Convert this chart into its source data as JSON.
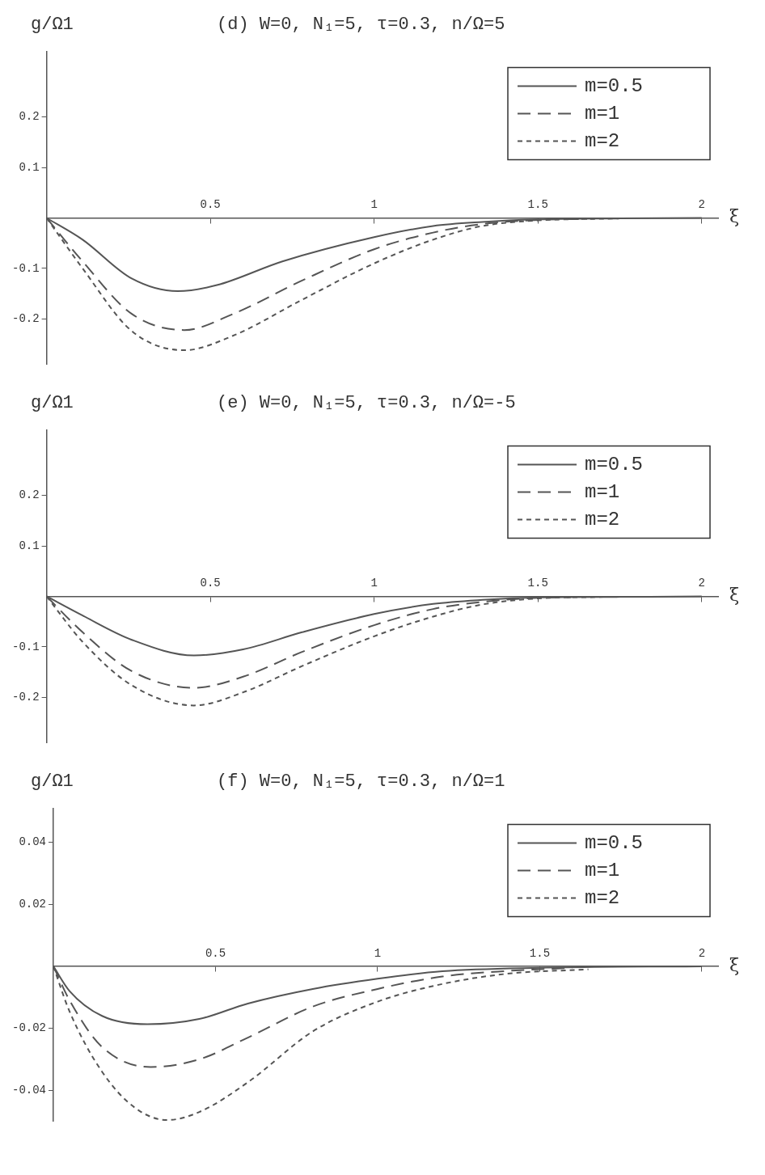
{
  "chart_data": [
    {
      "type": "line",
      "title": "(d) W=0,  N₁=5, τ=0.3,  n/Ω=5",
      "ylabel": "g/Ω1",
      "xlabel": "ξ",
      "xlim": [
        0,
        2.05
      ],
      "ylim": [
        -0.29,
        0.33
      ],
      "xticks": [
        0.5,
        1,
        1.5,
        2
      ],
      "yticks": [
        -0.2,
        -0.1,
        0.1,
        0.2
      ],
      "legend": "top right",
      "grid": false,
      "series": [
        {
          "name": "m=0.5",
          "color": "#555555",
          "line_style": "solid",
          "x": [
            0,
            0.11,
            0.26,
            0.4,
            0.52,
            0.72,
            1,
            1.18,
            1.33,
            1.5,
            1.75,
            2
          ],
          "values": [
            0,
            -0.043,
            -0.12,
            -0.145,
            -0.133,
            -0.086,
            -0.038,
            -0.016,
            -0.008,
            -0.003,
            -0.001,
            0
          ]
        },
        {
          "name": "m=1",
          "color": "#555555",
          "line_style": "dashed",
          "x": [
            0,
            0.11,
            0.26,
            0.42,
            0.57,
            0.78,
            1,
            1.18,
            1.33,
            1.5,
            1.65
          ],
          "values": [
            0,
            -0.086,
            -0.19,
            -0.222,
            -0.19,
            -0.124,
            -0.062,
            -0.029,
            -0.012,
            -0.004,
            -0.002
          ]
        },
        {
          "name": "m=2",
          "color": "#555555",
          "line_style": "dotted",
          "x": [
            0,
            0.11,
            0.26,
            0.42,
            0.57,
            0.78,
            1,
            1.18,
            1.33,
            1.5,
            1.75
          ],
          "values": [
            0,
            -0.1,
            -0.224,
            -0.262,
            -0.233,
            -0.162,
            -0.09,
            -0.043,
            -0.016,
            -0.005,
            -0.001
          ]
        }
      ]
    },
    {
      "type": "line",
      "title": "(e) W=0,  N₁=5, τ=0.3,  n/Ω=-5",
      "ylabel": "g/Ω1",
      "xlabel": "ξ",
      "xlim": [
        0,
        2.05
      ],
      "ylim": [
        -0.29,
        0.33
      ],
      "xticks": [
        0.5,
        1,
        1.5,
        2
      ],
      "yticks": [
        -0.2,
        -0.1,
        0.1,
        0.2
      ],
      "legend": "top right",
      "grid": false,
      "series": [
        {
          "name": "m=0.5",
          "color": "#555555",
          "line_style": "solid",
          "x": [
            0,
            0.11,
            0.26,
            0.45,
            0.6,
            0.78,
            1,
            1.18,
            1.33,
            1.5,
            1.75,
            2
          ],
          "values": [
            0,
            -0.038,
            -0.086,
            -0.117,
            -0.105,
            -0.071,
            -0.035,
            -0.015,
            -0.007,
            -0.002,
            -0.001,
            0
          ]
        },
        {
          "name": "m=1",
          "color": "#555555",
          "line_style": "dashed",
          "x": [
            0,
            0.11,
            0.26,
            0.45,
            0.6,
            0.78,
            1,
            1.18,
            1.33,
            1.5,
            1.6
          ],
          "values": [
            0,
            -0.071,
            -0.148,
            -0.181,
            -0.159,
            -0.11,
            -0.057,
            -0.025,
            -0.011,
            -0.003,
            -0.002
          ]
        },
        {
          "name": "m=2",
          "color": "#555555",
          "line_style": "dotted",
          "x": [
            0,
            0.11,
            0.26,
            0.45,
            0.6,
            0.78,
            1,
            1.18,
            1.33,
            1.5,
            1.7
          ],
          "values": [
            0,
            -0.09,
            -0.176,
            -0.216,
            -0.19,
            -0.138,
            -0.079,
            -0.04,
            -0.016,
            -0.004,
            -0.001
          ]
        }
      ]
    },
    {
      "type": "line",
      "title": "(f) W=0,  N₁=5, τ=0.3,  n/Ω=1",
      "ylabel": "g/Ω1",
      "xlabel": "ξ",
      "xlim": [
        0,
        2.05
      ],
      "ylim": [
        -0.05,
        0.051
      ],
      "xticks": [
        0.5,
        1,
        1.5,
        2
      ],
      "yticks": [
        -0.04,
        -0.02,
        0.02,
        0.04
      ],
      "legend": "top right",
      "grid": false,
      "series": [
        {
          "name": "m=0.5",
          "color": "#555555",
          "line_style": "solid",
          "x": [
            0,
            0.05,
            0.15,
            0.29,
            0.45,
            0.6,
            0.8,
            1,
            1.2,
            1.5,
            2
          ],
          "values": [
            0,
            -0.008,
            -0.016,
            -0.0187,
            -0.017,
            -0.012,
            -0.0073,
            -0.004,
            -0.0016,
            -0.0005,
            0
          ]
        },
        {
          "name": "m=1",
          "color": "#555555",
          "line_style": "dashed",
          "x": [
            0,
            0.05,
            0.15,
            0.3,
            0.45,
            0.6,
            0.8,
            1,
            1.2,
            1.4,
            1.6
          ],
          "values": [
            0,
            -0.011,
            -0.026,
            -0.0325,
            -0.03,
            -0.023,
            -0.013,
            -0.0073,
            -0.0033,
            -0.0015,
            -0.0005
          ]
        },
        {
          "name": "m=2",
          "color": "#555555",
          "line_style": "dotted",
          "x": [
            0,
            0.05,
            0.15,
            0.25,
            0.35,
            0.45,
            0.6,
            0.8,
            1,
            1.2,
            1.4,
            1.65
          ],
          "values": [
            0,
            -0.0146,
            -0.034,
            -0.0455,
            -0.0496,
            -0.047,
            -0.0374,
            -0.021,
            -0.0114,
            -0.0057,
            -0.0024,
            -0.001
          ]
        }
      ]
    }
  ]
}
